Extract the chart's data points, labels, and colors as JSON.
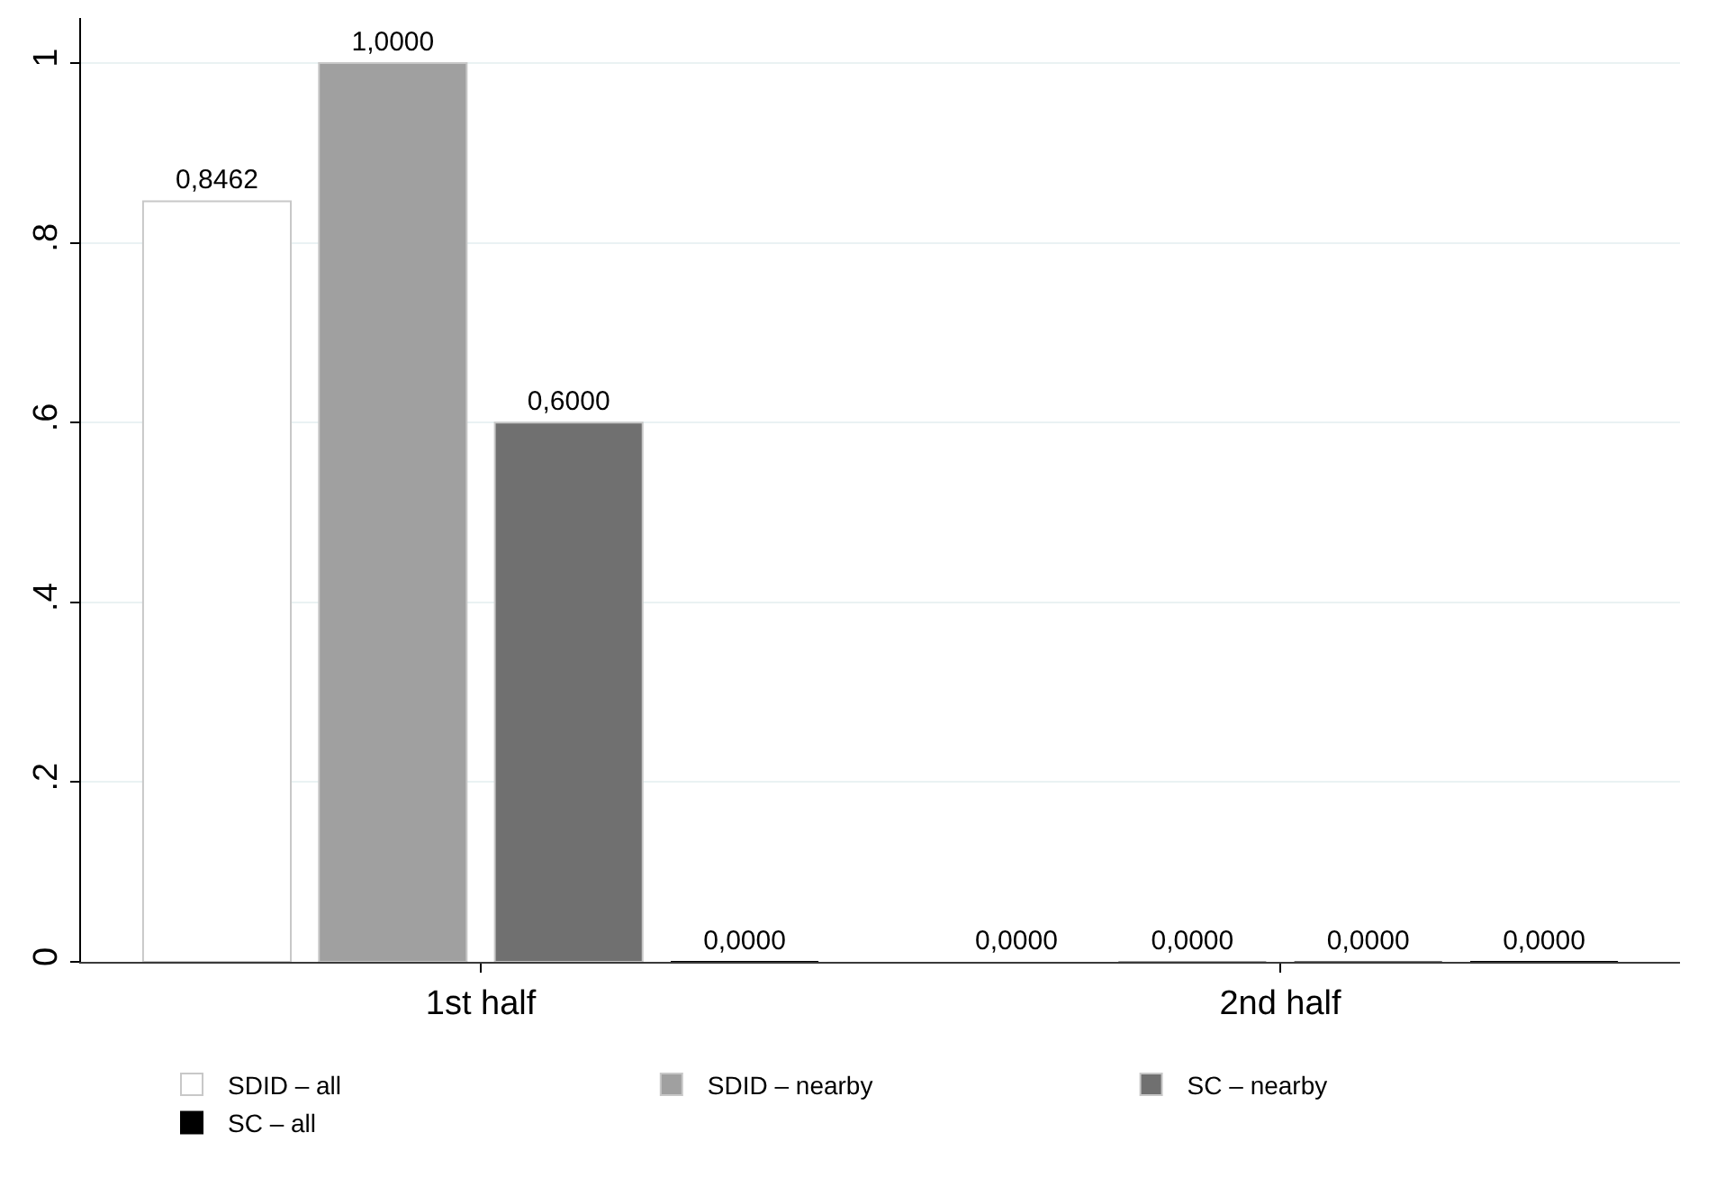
{
  "chart_data": {
    "type": "bar",
    "categories": [
      "1st half",
      "2nd half"
    ],
    "series": [
      {
        "name": "SDID – all",
        "color": "#ffffff",
        "values": [
          0.8462,
          0
        ],
        "value_labels": [
          "0,8462",
          "0,0000"
        ]
      },
      {
        "name": "SDID – nearby",
        "color": "#a0a0a0",
        "values": [
          1.0,
          0
        ],
        "value_labels": [
          "1,0000",
          "0,0000"
        ]
      },
      {
        "name": "SC – nearby",
        "color": "#707070",
        "values": [
          0.6,
          0
        ],
        "value_labels": [
          "0,6000",
          "0,0000"
        ]
      },
      {
        "name": "SC – all",
        "color": "#000000",
        "values": [
          0,
          0
        ],
        "value_labels": [
          "0,0000",
          "0,0000"
        ]
      }
    ],
    "ylim": [
      0,
      1.05
    ],
    "yticks": [
      0,
      {
        "value": 0.2,
        "label": ".2"
      },
      {
        "value": 0.4,
        "label": ".4"
      },
      {
        "value": 0.6,
        "label": ".6"
      },
      {
        "value": 0.8,
        "label": ".8"
      },
      1
    ],
    "grid": "y",
    "legend": "bottom"
  }
}
